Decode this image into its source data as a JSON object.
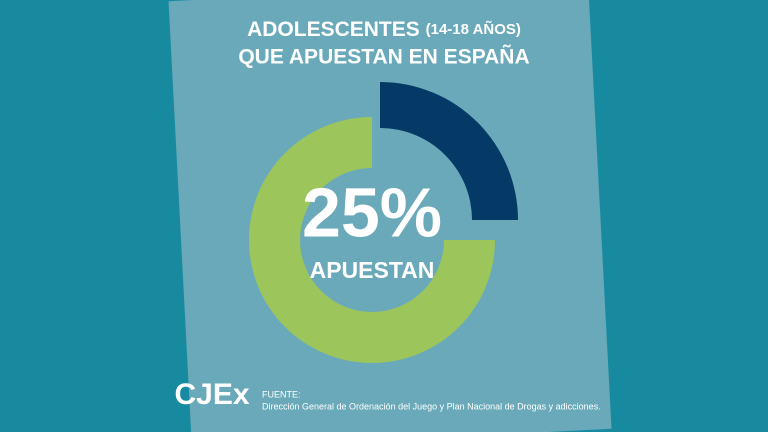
{
  "chart_data": {
    "type": "donut",
    "title": "ADOLESCENTES",
    "title_note": "(14-18 AÑOS)",
    "subtitle": "QUE APUESTAN EN ESPAÑA",
    "categories": [
      "APUESTAN",
      null
    ],
    "values": [
      25,
      75
    ],
    "value_labels": [
      "25%",
      null
    ],
    "colors": [
      "#063a66",
      "#9cc55b"
    ],
    "source_label": "FUENTE:",
    "source": "Dirección General de Ordenación del Juego y Plan Nacional de Drogas y adicciones.",
    "logo": "CJEx"
  }
}
